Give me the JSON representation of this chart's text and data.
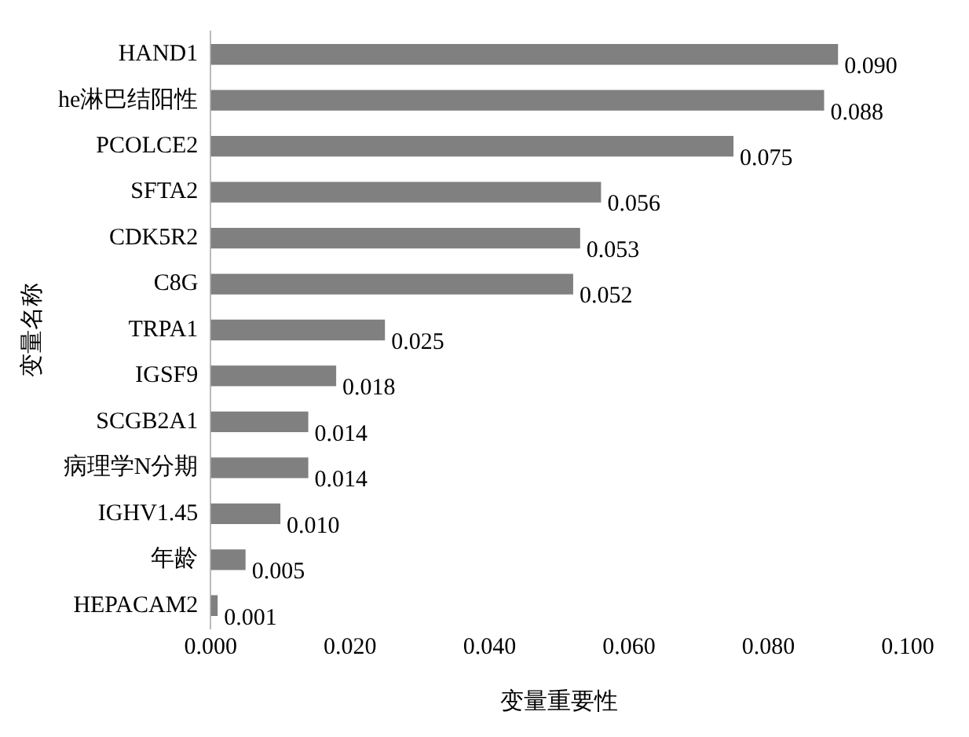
{
  "chart_data": {
    "type": "bar",
    "orientation": "horizontal",
    "xlabel": "变量重要性",
    "ylabel": "变量名称",
    "categories": [
      "HAND1",
      "he淋巴结阳性",
      "PCOLCE2",
      "SFTA2",
      "CDK5R2",
      "C8G",
      "TRPA1",
      "IGSF9",
      "SCGB2A1",
      "病理学N分期",
      "IGHV1.45",
      "年龄",
      "HEPACAM2"
    ],
    "values": [
      0.09,
      0.088,
      0.075,
      0.056,
      0.053,
      0.052,
      0.025,
      0.018,
      0.014,
      0.014,
      0.01,
      0.005,
      0.001
    ],
    "value_labels": [
      "0.090",
      "0.088",
      "0.075",
      "0.056",
      "0.053",
      "0.052",
      "0.025",
      "0.018",
      "0.014",
      "0.014",
      "0.010",
      "0.005",
      "0.001"
    ],
    "color": "#808080",
    "xlim": [
      0,
      0.1
    ],
    "xticks": [
      {
        "value": 0,
        "label": "0.000"
      },
      {
        "value": 0.02,
        "label": "0.020"
      },
      {
        "value": 0.04,
        "label": "0.040"
      },
      {
        "value": 0.06,
        "label": "0.060"
      },
      {
        "value": 0.08,
        "label": "0.080"
      },
      {
        "value": 0.1,
        "label": "0.100"
      }
    ],
    "grid": false,
    "legend": false
  }
}
